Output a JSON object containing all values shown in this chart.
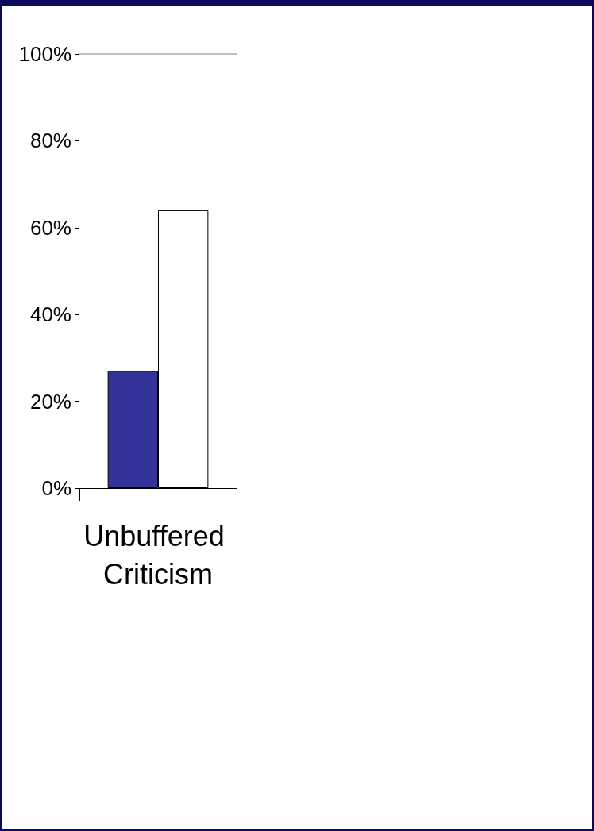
{
  "chart_data": {
    "type": "bar",
    "categories": [
      "Unbuffered Criticism"
    ],
    "series": [
      {
        "color": "#333399",
        "values": [
          27
        ]
      },
      {
        "color": "#ffffff",
        "values": [
          64
        ]
      }
    ],
    "ylim": [
      0,
      100
    ],
    "yticks": [
      {
        "value": 0,
        "label": "0%"
      },
      {
        "value": 20,
        "label": "20%"
      },
      {
        "value": 40,
        "label": "40%"
      },
      {
        "value": 60,
        "label": "60%"
      },
      {
        "value": 80,
        "label": "80%"
      },
      {
        "value": 100,
        "label": "100%"
      }
    ],
    "grid": false
  }
}
